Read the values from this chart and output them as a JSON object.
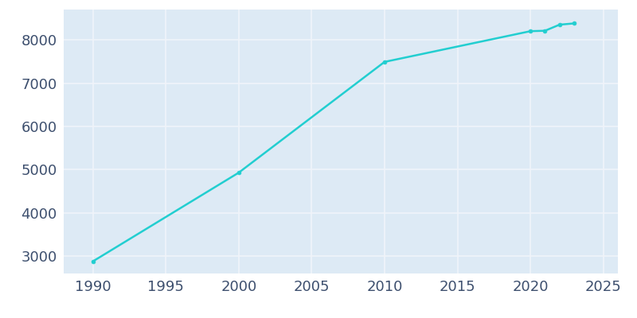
{
  "years": [
    1990,
    2000,
    2010,
    2020,
    2021,
    2022,
    2023
  ],
  "population": [
    2880,
    4930,
    7490,
    8200,
    8210,
    8350,
    8380
  ],
  "line_color": "#22CED0",
  "marker": "o",
  "marker_size": 3.5,
  "linewidth": 1.8,
  "background_color": "#DDEAF5",
  "plot_bg_color": "#DDEAF5",
  "outer_bg_color": "#ffffff",
  "grid_color": "#f0f4fa",
  "xlim": [
    1988,
    2026
  ],
  "ylim": [
    2600,
    8700
  ],
  "xticks": [
    1990,
    1995,
    2000,
    2005,
    2010,
    2015,
    2020,
    2025
  ],
  "yticks": [
    3000,
    4000,
    5000,
    6000,
    7000,
    8000
  ],
  "tick_fontsize": 13,
  "tick_color": "#3d4f6e",
  "figsize": [
    8.0,
    4.0
  ],
  "dpi": 100
}
